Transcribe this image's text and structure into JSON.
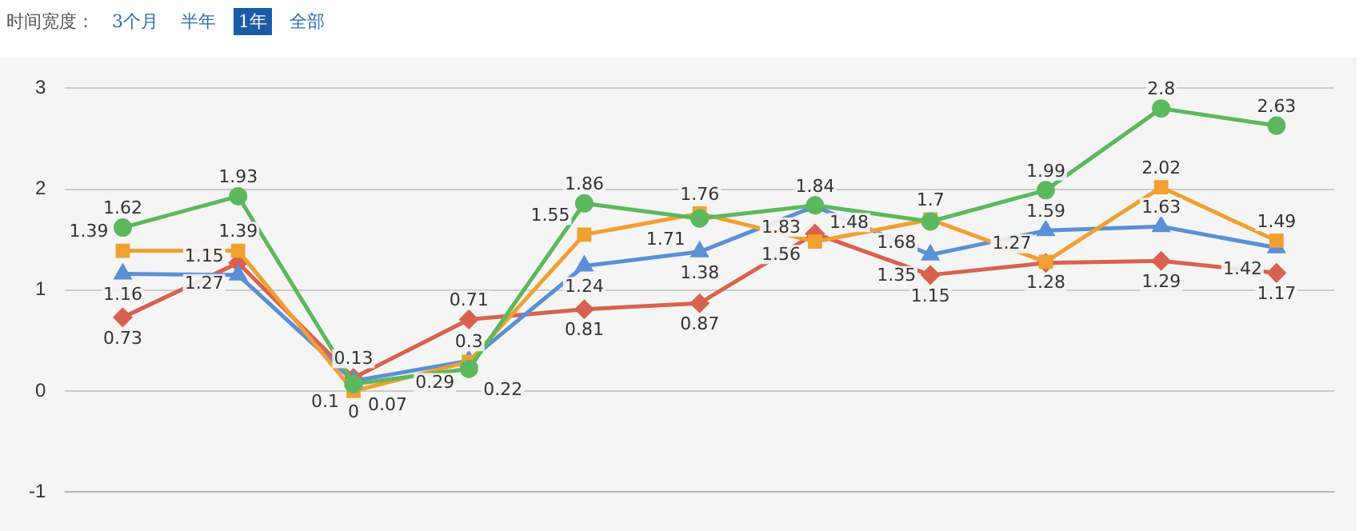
{
  "chart_data": {
    "type": "line",
    "subtitle": "时间宽度：",
    "annotations": [
      "3个月",
      "半年",
      "1年",
      "全部"
    ],
    "categories": [
      null,
      null,
      null,
      null,
      null,
      null,
      null,
      null,
      null,
      null,
      null
    ],
    "series": [
      {
        "color": "#5cb85c",
        "marker": "circle",
        "values": [
          1.62,
          1.93,
          0.07,
          0.22,
          1.86,
          1.71,
          1.84,
          1.68,
          1.99,
          2.8,
          2.63
        ]
      },
      {
        "color": "#f0a030",
        "marker": "square",
        "values": [
          1.39,
          1.39,
          0,
          0.29,
          1.55,
          1.76,
          1.48,
          1.7,
          1.28,
          2.02,
          1.49
        ]
      },
      {
        "color": "#5b8fd6",
        "marker": "triangle",
        "values": [
          1.16,
          1.15,
          0.1,
          0.3,
          1.24,
          1.38,
          1.83,
          1.35,
          1.59,
          1.63,
          1.42
        ]
      },
      {
        "color": "#d9614f",
        "marker": "diamond",
        "values": [
          0.73,
          1.27,
          0.13,
          0.71,
          0.81,
          0.87,
          1.56,
          1.15,
          1.27,
          1.29,
          1.17
        ]
      }
    ],
    "ylim": [
      -1,
      3
    ],
    "yticks": [
      -1,
      0,
      1,
      2,
      3
    ],
    "grid": "y",
    "legend": false,
    "data_labels": true
  }
}
